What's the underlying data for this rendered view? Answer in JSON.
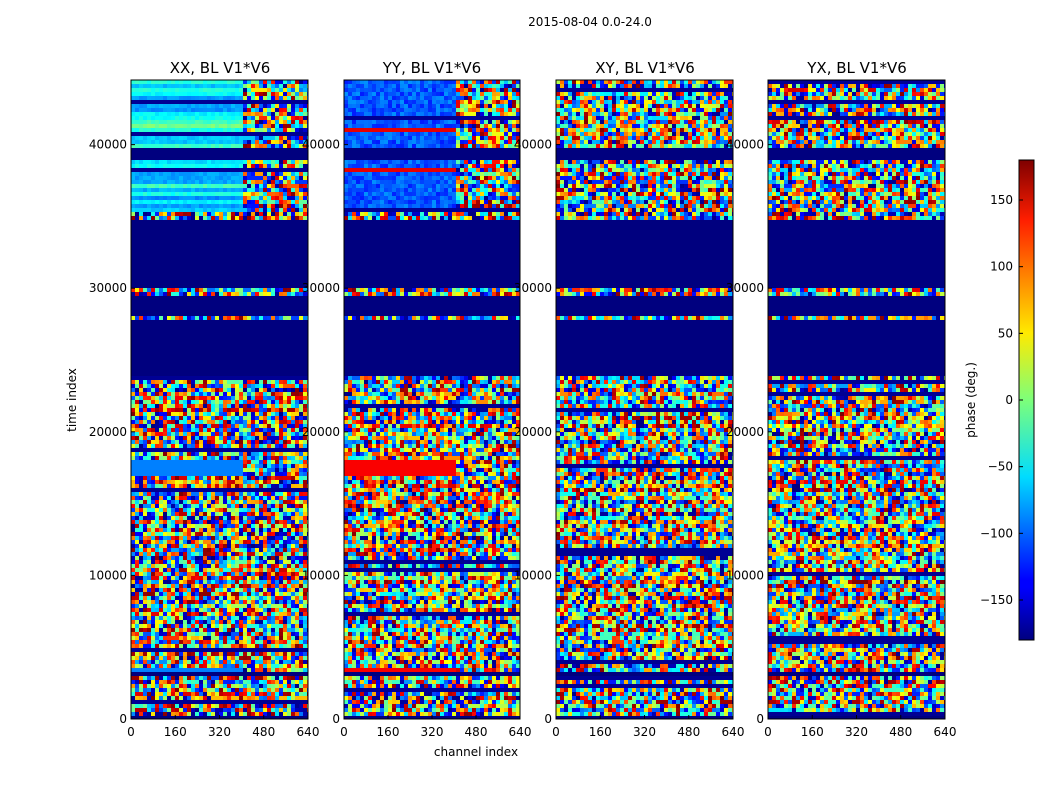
{
  "chart_data": {
    "type": "heatmap",
    "suptitle": "2015-08-04 0.0-24.0",
    "xlabel": "channel index",
    "ylabel": "time index",
    "xlim": [
      0,
      640
    ],
    "ylim": [
      0,
      44500
    ],
    "x_ticks": [
      "0",
      "160",
      "320",
      "480",
      "640"
    ],
    "y_ticks": [
      "0",
      "10000",
      "20000",
      "30000",
      "40000"
    ],
    "y_tick_values": [
      0,
      10000,
      20000,
      30000,
      40000
    ],
    "x_tick_values": [
      0,
      160,
      320,
      480,
      640
    ],
    "panels": [
      {
        "title": "XX, BL V1*V6",
        "coherent_band_edge": 400,
        "coherent_band_hue": "cyan-blue"
      },
      {
        "title": "YY, BL V1*V6",
        "coherent_band_edge": 400,
        "coherent_band_hue": "red-blue"
      },
      {
        "title": "XY, BL V1*V6",
        "coherent_band_edge": 0,
        "coherent_band_hue": "noise"
      },
      {
        "title": "YX, BL V1*V6",
        "coherent_band_edge": 0,
        "coherent_band_hue": "noise"
      }
    ],
    "flagged_time_ranges": [
      [
        24000,
        28000
      ],
      [
        28300,
        29600
      ],
      [
        30200,
        34800
      ],
      [
        39000,
        39800
      ],
      [
        3000,
        3500
      ]
    ],
    "colorbar": {
      "label": "phase (deg.)",
      "range": [
        -180,
        180
      ],
      "ticks": [
        "150",
        "100",
        "50",
        "0",
        "−50",
        "−100",
        "−150"
      ],
      "tick_values": [
        150,
        100,
        50,
        0,
        -50,
        -100,
        -150
      ],
      "colormap": "jet"
    }
  }
}
